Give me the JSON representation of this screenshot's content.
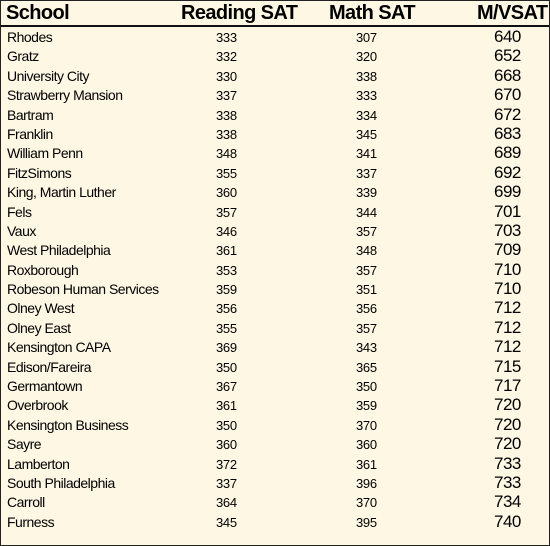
{
  "table": {
    "headers": {
      "school": "School",
      "reading": "Reading SAT",
      "math": "Math  SAT",
      "mvsat": "M/VSAT"
    },
    "rows": [
      {
        "school": "Rhodes",
        "reading": "333",
        "math": "307",
        "mvsat": "640"
      },
      {
        "school": "Gratz",
        "reading": "332",
        "math": "320",
        "mvsat": "652"
      },
      {
        "school": "University City",
        "reading": "330",
        "math": "338",
        "mvsat": "668"
      },
      {
        "school": "Strawberry Mansion",
        "reading": "337",
        "math": "333",
        "mvsat": "670"
      },
      {
        "school": "Bartram",
        "reading": "338",
        "math": "334",
        "mvsat": "672"
      },
      {
        "school": "Franklin",
        "reading": "338",
        "math": "345",
        "mvsat": "683"
      },
      {
        "school": "William Penn",
        "reading": "348",
        "math": "341",
        "mvsat": "689"
      },
      {
        "school": "FitzSimons",
        "reading": "355",
        "math": "337",
        "mvsat": "692"
      },
      {
        "school": "King, Martin Luther",
        "reading": "360",
        "math": "339",
        "mvsat": "699"
      },
      {
        "school": "Fels",
        "reading": "357",
        "math": "344",
        "mvsat": "701"
      },
      {
        "school": "Vaux",
        "reading": "346",
        "math": "357",
        "mvsat": "703"
      },
      {
        "school": "West Philadelphia",
        "reading": "361",
        "math": "348",
        "mvsat": "709"
      },
      {
        "school": "Roxborough",
        "reading": "353",
        "math": "357",
        "mvsat": "710"
      },
      {
        "school": "Robeson Human Services",
        "reading": "359",
        "math": "351",
        "mvsat": "710"
      },
      {
        "school": "Olney West",
        "reading": "356",
        "math": "356",
        "mvsat": "712"
      },
      {
        "school": "Olney East",
        "reading": "355",
        "math": "357",
        "mvsat": "712"
      },
      {
        "school": "Kensington CAPA",
        "reading": "369",
        "math": "343",
        "mvsat": "712"
      },
      {
        "school": "Edison/Fareira",
        "reading": "350",
        "math": "365",
        "mvsat": "715"
      },
      {
        "school": "Germantown",
        "reading": "367",
        "math": "350",
        "mvsat": "717"
      },
      {
        "school": "Overbrook",
        "reading": "361",
        "math": "359",
        "mvsat": "720"
      },
      {
        "school": "Kensington Business",
        "reading": "350",
        "math": "370",
        "mvsat": "720"
      },
      {
        "school": "Sayre",
        "reading": "360",
        "math": "360",
        "mvsat": "720"
      },
      {
        "school": "Lamberton",
        "reading": "372",
        "math": "361",
        "mvsat": "733"
      },
      {
        "school": "South Philadelphia",
        "reading": "337",
        "math": "396",
        "mvsat": "733"
      },
      {
        "school": "Carroll",
        "reading": "364",
        "math": "370",
        "mvsat": "734"
      },
      {
        "school": "Furness",
        "reading": "345",
        "math": "395",
        "mvsat": "740"
      }
    ]
  }
}
